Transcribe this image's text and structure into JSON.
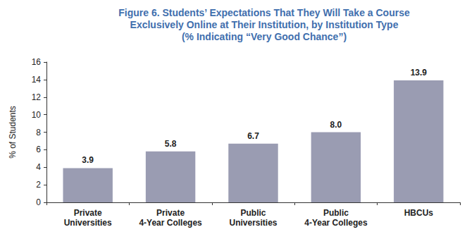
{
  "chart_data": {
    "type": "bar",
    "title": "Figure 6. Students’ Expectations That They Will Take a Course\nExclusively Online at Their Institution, by Institution Type\n(% Indicating “Very Good Chance”)",
    "y_label": "% of Students",
    "categories": [
      "Private\nUniversities",
      "Private\n4-Year Colleges",
      "Public\nUniversities",
      "Public\n4-Year Colleges",
      "HBCUs"
    ],
    "values": [
      3.9,
      5.8,
      6.7,
      8.0,
      13.9
    ],
    "value_labels": [
      "3.9",
      "5.8",
      "6.7",
      "8.0",
      "13.9"
    ],
    "color": "#9a9cb2",
    "ylim": [
      0,
      16
    ],
    "yticks": [
      0,
      2,
      4,
      6,
      8,
      10,
      12,
      14,
      16
    ],
    "grid": false,
    "data_labels": true
  }
}
